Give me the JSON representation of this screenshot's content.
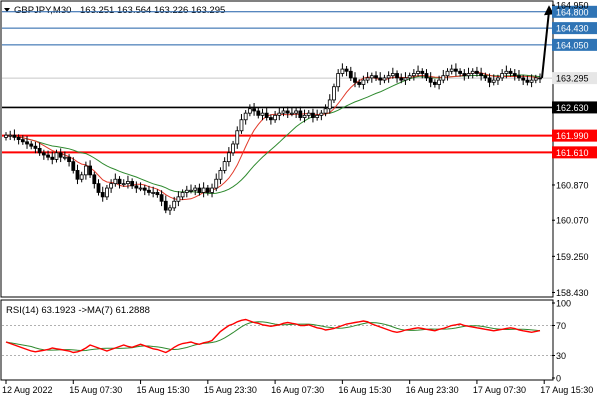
{
  "header": {
    "symbol_timeframe": "GBPJPY,M30",
    "ohlc": "163.251 163.564 163.226 163.295"
  },
  "rsi_header": {
    "text": "RSI(14) 63.1923  ->MA(7) 61.2888"
  },
  "colors": {
    "support_resistance_red": "#ff0000",
    "target_blue": "#1f5fa8",
    "ma_fast": "#e23a2a",
    "ma_slow": "#2f8a2f",
    "rsi_line": "#ff0000",
    "rsi_ma": "#2f8a2f",
    "price_tag_bg": "#e6e6e6",
    "black_tag_bg": "#000000",
    "red_tag_bg": "#ff0000",
    "blue_tag_bg": "#2f74b5",
    "arrow": "#000000"
  },
  "chart_data": {
    "type": "candlestick",
    "symbol": "GBPJPY",
    "timeframe": "M30",
    "y_ticks": [
      158.43,
      159.25,
      160.07,
      160.87,
      161.61,
      161.99,
      162.63,
      163.295,
      164.05,
      164.43,
      164.8,
      164.95
    ],
    "y_tick_labels": [
      "158.430",
      "159.250",
      "160.070",
      "160.870",
      "161.610",
      "161.990",
      "162.630",
      "163.295",
      "164.050",
      "164.430",
      "164.800",
      "164.950"
    ],
    "ylim": [
      158.35,
      165.0
    ],
    "x_tick_labels": [
      "12 Aug 2022",
      "15 Aug 07:30",
      "15 Aug 15:30",
      "15 Aug 23:30",
      "16 Aug 07:30",
      "16 Aug 15:30",
      "16 Aug 23:30",
      "17 Aug 07:30",
      "17 Aug 15:30"
    ],
    "x_tick_index": [
      0,
      16,
      32,
      48,
      64,
      80,
      96,
      112,
      128
    ],
    "current_price": 163.295,
    "levels": [
      {
        "kind": "resistance",
        "price": 164.8,
        "label": "164.800",
        "color": "blue"
      },
      {
        "kind": "resistance",
        "price": 164.43,
        "label": "164.430",
        "color": "blue"
      },
      {
        "kind": "resistance",
        "price": 164.05,
        "label": "164.050",
        "color": "blue"
      },
      {
        "kind": "pivot",
        "price": 162.63,
        "label": "162.630",
        "color": "black"
      },
      {
        "kind": "support",
        "price": 161.99,
        "label": "161.990",
        "color": "red"
      },
      {
        "kind": "support",
        "price": 161.61,
        "label": "161.610",
        "color": "red"
      }
    ],
    "close": [
      162.0,
      162.0,
      161.95,
      161.9,
      161.85,
      161.8,
      161.75,
      161.7,
      161.6,
      161.55,
      161.5,
      161.45,
      161.6,
      161.5,
      161.5,
      161.4,
      161.2,
      161.0,
      161.1,
      161.3,
      161.1,
      160.9,
      160.7,
      160.6,
      160.8,
      160.9,
      161.0,
      160.9,
      160.9,
      160.95,
      160.85,
      160.8,
      160.8,
      160.75,
      160.7,
      160.7,
      160.65,
      160.5,
      160.3,
      160.35,
      160.5,
      160.6,
      160.7,
      160.75,
      160.75,
      160.8,
      160.7,
      160.8,
      160.7,
      160.8,
      161.0,
      161.2,
      161.4,
      161.6,
      161.8,
      162.1,
      162.35,
      162.5,
      162.6,
      162.55,
      162.45,
      162.5,
      162.4,
      162.35,
      162.45,
      162.5,
      162.55,
      162.5,
      162.5,
      162.55,
      162.4,
      162.45,
      162.5,
      162.4,
      162.45,
      162.5,
      162.6,
      162.8,
      163.1,
      163.4,
      163.5,
      163.45,
      163.3,
      163.2,
      163.15,
      163.25,
      163.3,
      163.35,
      163.3,
      163.25,
      163.3,
      163.35,
      163.4,
      163.3,
      163.25,
      163.3,
      163.35,
      163.4,
      163.45,
      163.4,
      163.3,
      163.2,
      163.15,
      163.25,
      163.35,
      163.45,
      163.5,
      163.45,
      163.4,
      163.35,
      163.4,
      163.45,
      163.4,
      163.35,
      163.3,
      163.2,
      163.25,
      163.3,
      163.4,
      163.45,
      163.4,
      163.35,
      163.3,
      163.25,
      163.2,
      163.25,
      163.3,
      163.295
    ],
    "arrow": {
      "from_price": 163.3,
      "to_price": 164.95
    }
  },
  "rsi_data": {
    "type": "line",
    "ylim": [
      0,
      100
    ],
    "ticks": [
      100,
      70,
      30,
      0
    ],
    "tick_labels": [
      "100",
      "70",
      "30",
      "0"
    ],
    "rsi": [
      48,
      46,
      44,
      42,
      40,
      38,
      36,
      35,
      36,
      37,
      38,
      40,
      39,
      38,
      37,
      36,
      34,
      35,
      37,
      40,
      44,
      42,
      40,
      38,
      36,
      38,
      40,
      42,
      44,
      42,
      41,
      43,
      45,
      43,
      41,
      39,
      38,
      36,
      34,
      37,
      41,
      44,
      46,
      47,
      48,
      46,
      45,
      47,
      48,
      50,
      56,
      62,
      66,
      70,
      72,
      75,
      77,
      78,
      76,
      74,
      73,
      71,
      70,
      69,
      70,
      71,
      73,
      74,
      73,
      72,
      70,
      70,
      71,
      69,
      67,
      66,
      64,
      65,
      66,
      68,
      70,
      72,
      73,
      74,
      75,
      76,
      75,
      72,
      70,
      68,
      66,
      64,
      62,
      61,
      62,
      64,
      65,
      66,
      67,
      66,
      65,
      64,
      63,
      65,
      66,
      68,
      70,
      71,
      72,
      70,
      69,
      68,
      67,
      66,
      65,
      64,
      63,
      64,
      65,
      66,
      67,
      66,
      64,
      63,
      62,
      61,
      62,
      63.19
    ]
  }
}
